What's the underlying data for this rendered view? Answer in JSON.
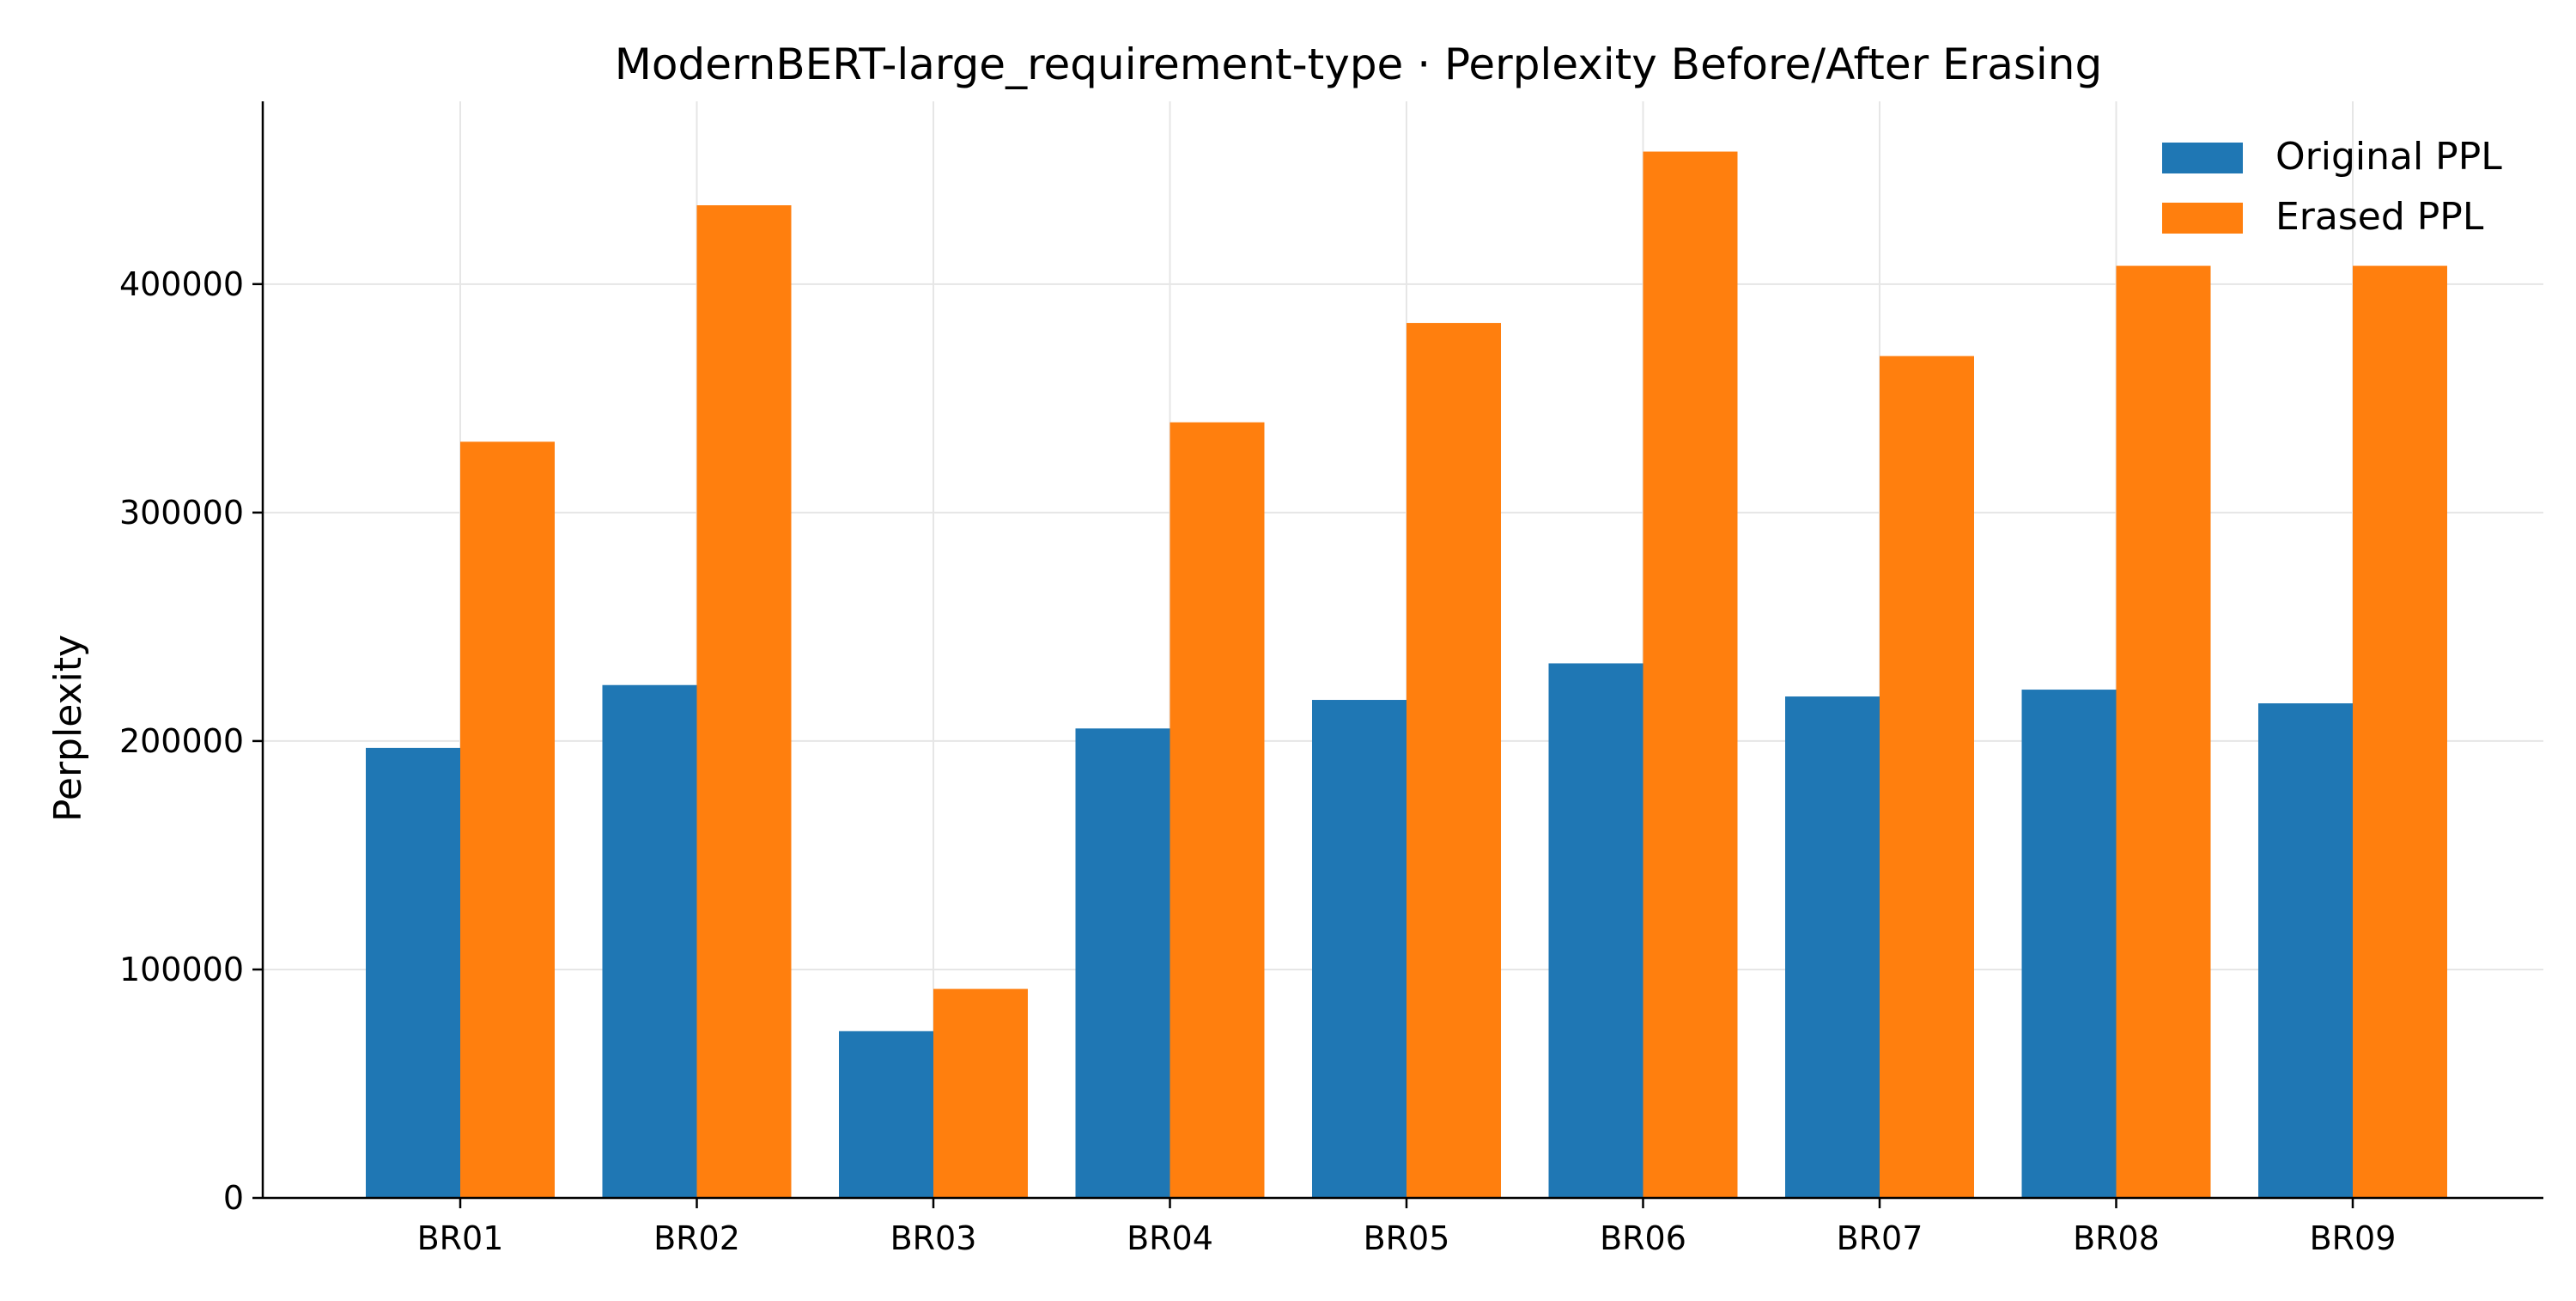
{
  "chart_data": {
    "type": "bar",
    "title": "ModernBERT-large_requirement-type · Perplexity Before/After Erasing",
    "xlabel": "",
    "ylabel": "Perplexity",
    "categories": [
      "BR01",
      "BR02",
      "BR03",
      "BR04",
      "BR05",
      "BR06",
      "BR07",
      "BR08",
      "BR09"
    ],
    "series": [
      {
        "name": "Original PPL",
        "color": "#1f77b4",
        "values": [
          197000,
          224500,
          73000,
          205500,
          218000,
          234000,
          219500,
          222500,
          216500
        ]
      },
      {
        "name": "Erased PPL",
        "color": "#ff7f0e",
        "values": [
          331000,
          434500,
          91500,
          339500,
          383000,
          458000,
          368500,
          408000,
          408000
        ]
      }
    ],
    "ylim": [
      0,
      480000
    ],
    "yticks": [
      0,
      100000,
      200000,
      300000,
      400000
    ],
    "grid": true,
    "legend_position": "top-right"
  }
}
